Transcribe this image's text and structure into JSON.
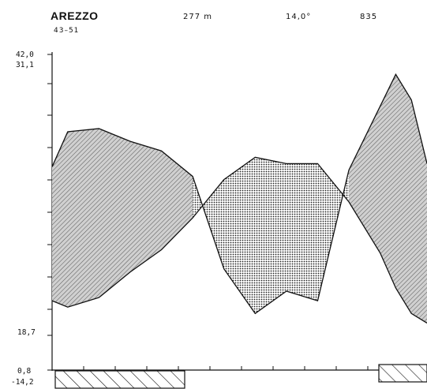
{
  "header": {
    "station": "AREZZO",
    "years": "43–51",
    "altitude": "277 m",
    "mean_temp": "14,0°",
    "precipitation": "835"
  },
  "axis_labels": {
    "top_max": "42,0",
    "max_warm": "31,1",
    "min_cold": "18,7",
    "min_mean": "0,8",
    "abs_min": "-14,2"
  },
  "chart_data": {
    "type": "area",
    "title": "AREZZO",
    "x": [
      0,
      0.5,
      1.5,
      2.5,
      3.5,
      4.5,
      5.5,
      6.5,
      7.5,
      8.5,
      9.5,
      10.5,
      11,
      11.5,
      12
    ],
    "series": [
      {
        "values": [
          0.36,
          0.25,
          0.24,
          0.28,
          0.31,
          0.39,
          0.68,
          0.82,
          0.75,
          0.78,
          0.37,
          0.17,
          0.07,
          0.15,
          0.35
        ]
      },
      {
        "values": [
          0.78,
          0.8,
          0.77,
          0.69,
          0.62,
          0.52,
          0.4,
          0.33,
          0.35,
          0.35,
          0.47,
          0.63,
          0.74,
          0.82,
          0.85
        ]
      }
    ],
    "colors": {
      "humid_fill": "#bdbdbd",
      "dry_fill": "#9a9a9a",
      "line": "#111111"
    },
    "frost_months": {
      "certain_frost_start": [
        0,
        0.5,
        1.5,
        2.5,
        3.5
      ],
      "certain_frost_end": [
        10.5,
        11.5
      ]
    }
  }
}
